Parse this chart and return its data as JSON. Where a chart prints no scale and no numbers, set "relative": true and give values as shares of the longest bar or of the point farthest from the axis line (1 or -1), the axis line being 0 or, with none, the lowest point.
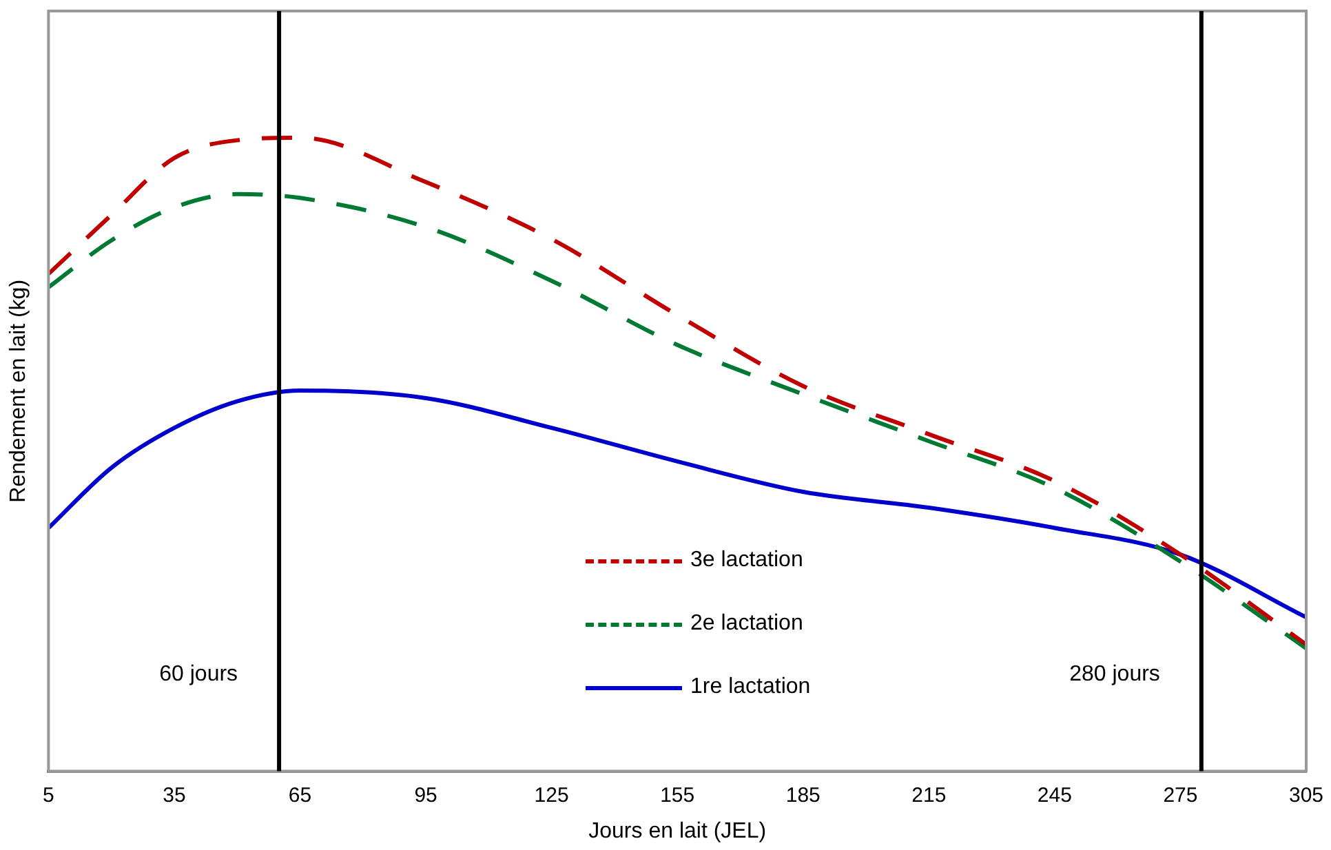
{
  "chart_data": {
    "type": "line",
    "relative": true,
    "xlabel": "Jours en lait (JEL)",
    "ylabel": "Rendement en lait (kg)",
    "x": [
      5,
      20,
      35,
      50,
      65,
      95,
      125,
      155,
      185,
      215,
      245,
      275,
      305
    ],
    "xlim": [
      5,
      305
    ],
    "xticks": [
      5,
      35,
      65,
      95,
      125,
      155,
      185,
      215,
      245,
      275,
      305
    ],
    "series": [
      {
        "name": "3e lactation",
        "color": "#c00000",
        "line_style": "dashed",
        "values": [
          0.785,
          0.878,
          0.968,
          0.996,
          1,
          0.93,
          0.84,
          0.72,
          0.608,
          0.532,
          0.458,
          0.342,
          0.2
        ]
      },
      {
        "name": "2e lactation",
        "color": "#007a33",
        "line_style": "dashed",
        "values": [
          0.764,
          0.838,
          0.89,
          0.911,
          0.905,
          0.859,
          0.774,
          0.673,
          0.595,
          0.521,
          0.447,
          0.331,
          0.194
        ]
      },
      {
        "name": "1re lactation",
        "color": "#0000cc",
        "line_style": "solid",
        "values": [
          0.384,
          0.479,
          0.542,
          0.584,
          0.601,
          0.589,
          0.542,
          0.489,
          0.441,
          0.416,
          0.384,
          0.342,
          0.243
        ]
      }
    ],
    "ref_lines": [
      {
        "axis": "x",
        "value": 60,
        "label": "60 jours",
        "color": "#000000"
      },
      {
        "axis": "x",
        "value": 280,
        "label": "280 jours",
        "color": "#000000"
      }
    ],
    "legend": "bottom",
    "grid": false,
    "marker": "none"
  }
}
